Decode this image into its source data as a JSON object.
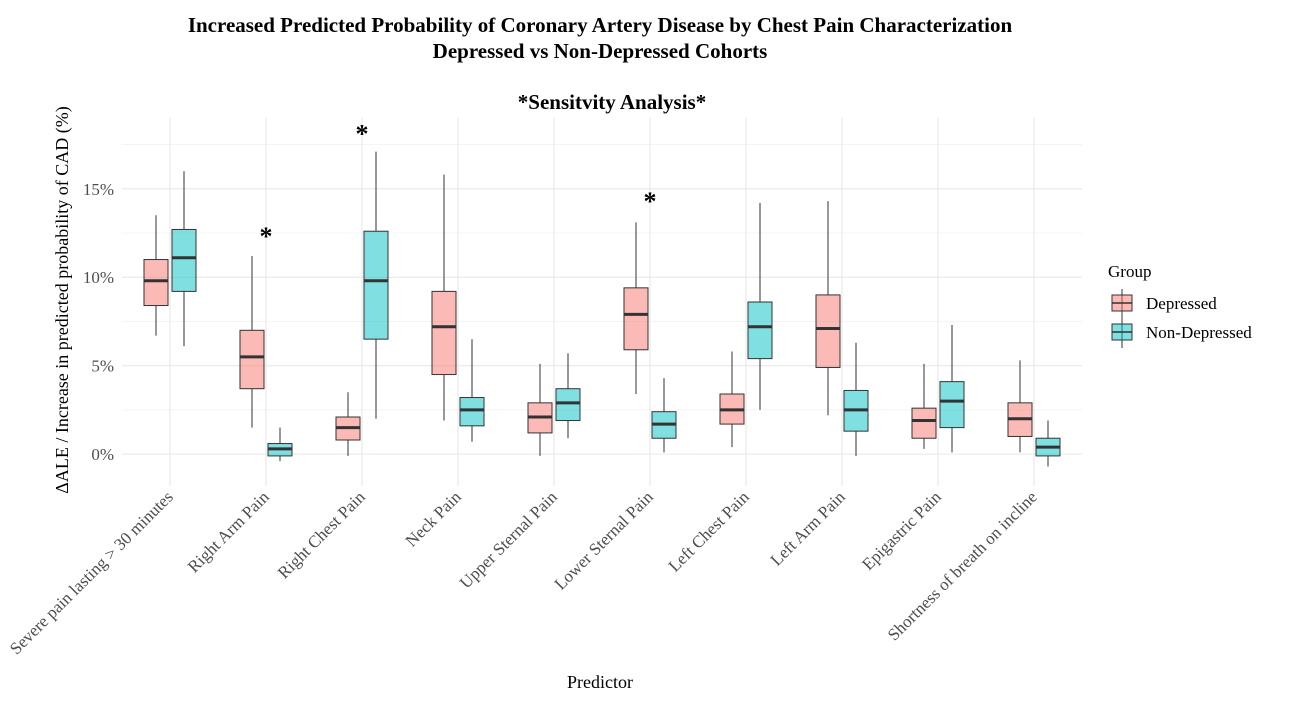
{
  "chart_data": {
    "type": "box",
    "title": "Increased Predicted Probability of Coronary Artery Disease by Chest Pain Characterization",
    "title_line2": "Depressed vs Non-Depressed Cohorts",
    "subtitle": "*Sensitvity Analysis*",
    "xlabel": "Predictor",
    "ylabel": "ΔALE / Increase in predicted probability of CAD (%)",
    "ylim": [
      -1.8,
      19
    ],
    "yticks": [
      0,
      5,
      10,
      15
    ],
    "ytick_labels": [
      "0%",
      "5%",
      "10%",
      "15%"
    ],
    "grid": true,
    "legend": {
      "title": "Group",
      "position": "right"
    },
    "categories": [
      "Severe pain lasting > 30 minutes",
      "Right Arm Pain",
      "Right Chest Pain",
      "Neck Pain",
      "Upper Sternal Pain",
      "Lower Sternal Pain",
      "Left Chest Pain",
      "Left Arm Pain",
      "Epigastric Pain",
      "Shortness of breath on incline"
    ],
    "series": [
      {
        "name": "Depressed",
        "color": "#F8766D",
        "boxes": [
          {
            "min": 6.7,
            "q1": 8.4,
            "median": 9.8,
            "q3": 11.0,
            "max": 13.5
          },
          {
            "min": 1.5,
            "q1": 3.7,
            "median": 5.5,
            "q3": 7.0,
            "max": 11.2
          },
          {
            "min": -0.1,
            "q1": 0.8,
            "median": 1.5,
            "q3": 2.1,
            "max": 3.5
          },
          {
            "min": 1.9,
            "q1": 4.5,
            "median": 7.2,
            "q3": 9.2,
            "max": 15.8
          },
          {
            "min": -0.1,
            "q1": 1.2,
            "median": 2.1,
            "q3": 2.9,
            "max": 5.1
          },
          {
            "min": 3.4,
            "q1": 5.9,
            "median": 7.9,
            "q3": 9.4,
            "max": 13.1
          },
          {
            "min": 0.4,
            "q1": 1.7,
            "median": 2.5,
            "q3": 3.4,
            "max": 5.8
          },
          {
            "min": 2.2,
            "q1": 4.9,
            "median": 7.1,
            "q3": 9.0,
            "max": 14.3
          },
          {
            "min": 0.3,
            "q1": 0.9,
            "median": 1.9,
            "q3": 2.6,
            "max": 5.1
          },
          {
            "min": 0.1,
            "q1": 1.0,
            "median": 2.0,
            "q3": 2.9,
            "max": 5.3
          }
        ]
      },
      {
        "name": "Non-Depressed",
        "color": "#00BFC4",
        "boxes": [
          {
            "min": 6.1,
            "q1": 9.2,
            "median": 11.1,
            "q3": 12.7,
            "max": 16.0
          },
          {
            "min": -0.4,
            "q1": -0.1,
            "median": 0.3,
            "q3": 0.6,
            "max": 1.5
          },
          {
            "min": 2.0,
            "q1": 6.5,
            "median": 9.8,
            "q3": 12.6,
            "max": 17.1
          },
          {
            "min": 0.7,
            "q1": 1.6,
            "median": 2.5,
            "q3": 3.2,
            "max": 6.5
          },
          {
            "min": 0.9,
            "q1": 1.9,
            "median": 2.9,
            "q3": 3.7,
            "max": 5.7
          },
          {
            "min": 0.1,
            "q1": 0.9,
            "median": 1.7,
            "q3": 2.4,
            "max": 4.3
          },
          {
            "min": 2.5,
            "q1": 5.4,
            "median": 7.2,
            "q3": 8.6,
            "max": 14.2
          },
          {
            "min": -0.1,
            "q1": 1.3,
            "median": 2.5,
            "q3": 3.6,
            "max": 6.3
          },
          {
            "min": 0.1,
            "q1": 1.5,
            "median": 3.0,
            "q3": 4.1,
            "max": 7.3
          },
          {
            "min": -0.7,
            "q1": -0.1,
            "median": 0.4,
            "q3": 0.9,
            "max": 1.9
          }
        ]
      }
    ],
    "annotations": [
      {
        "text": "*",
        "category_index": 1,
        "y": 12.6
      },
      {
        "text": "*",
        "category_index": 2,
        "y": 18.4
      },
      {
        "text": "*",
        "category_index": 5,
        "y": 14.6
      }
    ]
  }
}
